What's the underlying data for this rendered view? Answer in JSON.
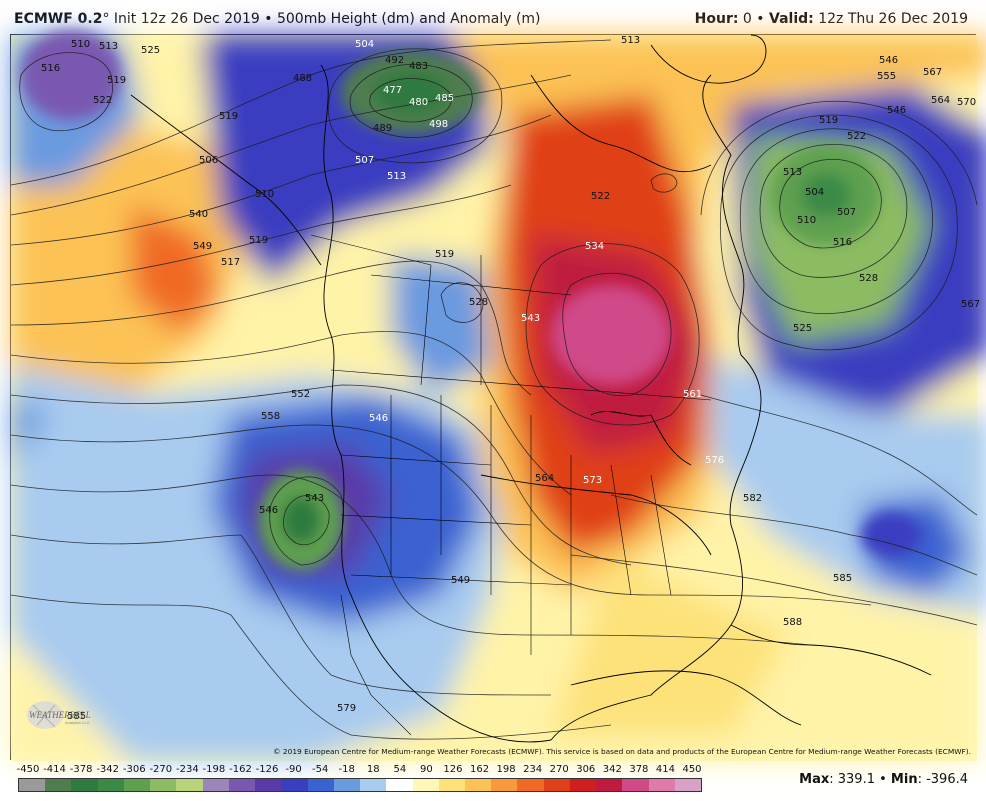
{
  "header": {
    "model": "ECMWF 0.2",
    "degree": "°",
    "init": " Init 12z 26 Dec 2019",
    "bullet": " • ",
    "product": "500mb Height (dm) and Anomaly (m)",
    "hour_label": "Hour:",
    "hour_value": " 0",
    "valid_label": "Valid:",
    "valid_value": " 12z Thu 26 Dec 2019"
  },
  "credit": "© 2019 European Centre for Medium-range Weather Forecasts (ECMWF). This service is based on data and products of the European Centre for Medium-range Weather Forecasts (ECMWF).",
  "logo": {
    "name": "WeatherBELL",
    "tagline": "Analytics LLC"
  },
  "colorbar": {
    "ticks": [
      "-450",
      "-414",
      "-378",
      "-342",
      "-306",
      "-270",
      "-234",
      "-198",
      "-162",
      "-126",
      "-90",
      "-54",
      "-18",
      "18",
      "54",
      "90",
      "126",
      "162",
      "198",
      "234",
      "270",
      "306",
      "342",
      "378",
      "414",
      "450"
    ],
    "colors": [
      "#9a9a9a",
      "#4f7d4f",
      "#2f7a40",
      "#3a8a46",
      "#5fa050",
      "#8cbc62",
      "#b8d47a",
      "#9a86b8",
      "#7a58b0",
      "#5a3aa8",
      "#3a3ec0",
      "#3a62d0",
      "#6a9ae0",
      "#a8cbef",
      "#ffffff",
      "#fff7b8",
      "#fde27a",
      "#fcc254",
      "#f99a3a",
      "#f06a26",
      "#e04018",
      "#d0201e",
      "#c01a40",
      "#d04a88",
      "#e07aa8",
      "#d8a2c8"
    ]
  },
  "stats": {
    "max_label": "Max",
    "max_value": ": 339.1",
    "sep": " • ",
    "min_label": "Min",
    "min_value": ": -396.4"
  },
  "contour_labels": [
    "510",
    "513",
    "516",
    "519",
    "522",
    "525",
    "504",
    "492",
    "483",
    "477",
    "480",
    "485",
    "488",
    "489",
    "498",
    "507",
    "513",
    "519",
    "506",
    "510",
    "519",
    "517",
    "540",
    "549",
    "528",
    "543",
    "552",
    "558",
    "546",
    "546",
    "543",
    "519",
    "534",
    "522",
    "561",
    "576",
    "582",
    "573",
    "564",
    "549",
    "585",
    "588",
    "579",
    "546",
    "504",
    "507",
    "510",
    "516",
    "513",
    "519",
    "522",
    "525",
    "528",
    "546",
    "555",
    "567",
    "564",
    "570",
    "567",
    "513",
    "585"
  ],
  "colors": {
    "ridge": "#e04018",
    "trough": "#3a3ec0",
    "trough_core": "#2f7a40"
  }
}
